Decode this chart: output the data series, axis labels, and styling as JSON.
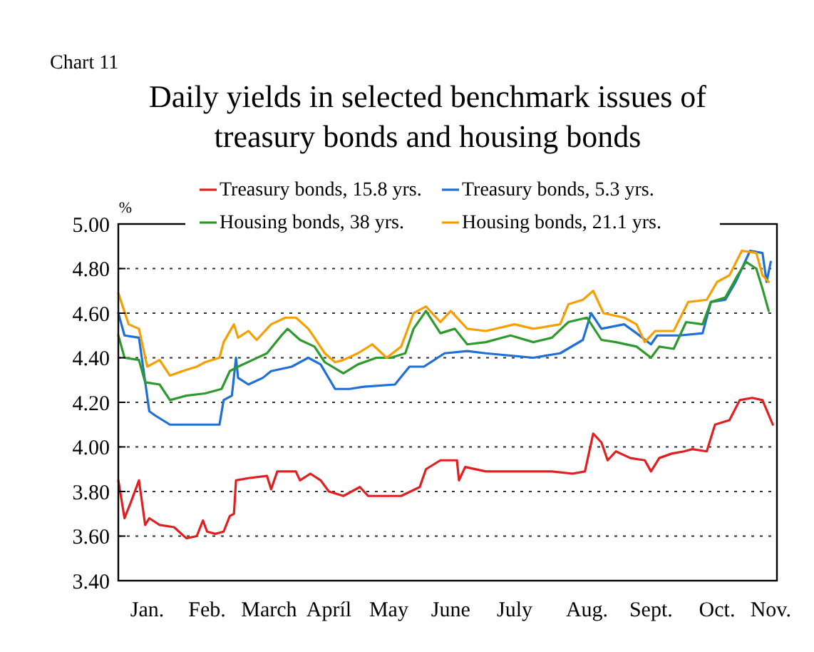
{
  "chart_data": {
    "type": "line",
    "title": "Daily yields in selected benchmark issues of\ntreasury bonds and housing bonds",
    "subtitle": "Chart 11",
    "ylabel": "%",
    "xlim": [
      "--01-01",
      "--11-16"
    ],
    "xticks": [
      {
        "value": "--01-15",
        "label": "Jan."
      },
      {
        "value": "--02-13",
        "label": "Feb."
      },
      {
        "value": "--03-15",
        "label": "March"
      },
      {
        "value": "--04-13",
        "label": "Apríl"
      },
      {
        "value": "--05-12",
        "label": "May"
      },
      {
        "value": "--06-11",
        "label": "June"
      },
      {
        "value": "--07-12",
        "label": "July"
      },
      {
        "value": "--08-16",
        "label": "Aug."
      },
      {
        "value": "--09-16",
        "label": "Sept."
      },
      {
        "value": "--10-18",
        "label": "Oct."
      },
      {
        "value": "--11-13",
        "label": "Nov."
      }
    ],
    "ylim": [
      3.4,
      5.0
    ],
    "yticks": [
      {
        "value": 3.4,
        "label": "3.40"
      },
      {
        "value": 3.6,
        "label": "3.60"
      },
      {
        "value": 3.8,
        "label": "3.80"
      },
      {
        "value": 4.0,
        "label": "4.00"
      },
      {
        "value": 4.2,
        "label": "4.20"
      },
      {
        "value": 4.4,
        "label": "4.40"
      },
      {
        "value": 4.6,
        "label": "4.60"
      },
      {
        "value": 4.8,
        "label": "4.80"
      },
      {
        "value": 5.0,
        "label": "5.00"
      }
    ],
    "grid": "y",
    "legend": "top",
    "marker": "none",
    "line_style": "solid",
    "series": [
      {
        "name": "Treasury bonds, 15.8 yrs.",
        "color": "#e02020",
        "x": [
          "--01-01",
          "--01-04",
          "--01-07",
          "--01-11",
          "--01-14",
          "--01-16",
          "--01-21",
          "--01-28",
          "--02-03",
          "--02-08",
          "--02-11",
          "--02-13",
          "--02-17",
          "--02-21",
          "--02-24",
          "--02-26",
          "--02-27",
          "--03-05",
          "--03-14",
          "--03-16",
          "--03-19",
          "--03-28",
          "--03-30",
          "--04-04",
          "--04-09",
          "--04-13",
          "--04-20",
          "--04-28",
          "--05-02",
          "--05-18",
          "--05-27",
          "--05-30",
          "--06-06",
          "--06-14",
          "--06-15",
          "--06-18",
          "--06-28",
          "--07-30",
          "--08-09",
          "--08-15",
          "--08-19",
          "--08-23",
          "--08-26",
          "--08-30",
          "--09-06",
          "--09-13",
          "--09-16",
          "--09-20",
          "--09-26",
          "--10-02",
          "--10-06",
          "--10-13",
          "--10-17",
          "--10-24",
          "--10-29",
          "--11-04",
          "--11-09",
          "--11-14"
        ],
        "values": [
          3.85,
          3.68,
          3.75,
          3.85,
          3.65,
          3.68,
          3.65,
          3.64,
          3.59,
          3.6,
          3.67,
          3.62,
          3.61,
          3.62,
          3.69,
          3.7,
          3.85,
          3.86,
          3.87,
          3.81,
          3.89,
          3.89,
          3.85,
          3.88,
          3.85,
          3.8,
          3.78,
          3.82,
          3.78,
          3.78,
          3.82,
          3.9,
          3.94,
          3.94,
          3.85,
          3.91,
          3.89,
          3.89,
          3.88,
          3.89,
          4.06,
          4.02,
          3.94,
          3.98,
          3.95,
          3.94,
          3.89,
          3.95,
          3.97,
          3.98,
          3.99,
          3.98,
          4.1,
          4.12,
          4.21,
          4.22,
          4.21,
          4.1
        ]
      },
      {
        "name": "Treasury bonds, 5.3 yrs.",
        "color": "#1f6fd6",
        "x": [
          "--01-01",
          "--01-04",
          "--01-11",
          "--01-16",
          "--01-19",
          "--01-26",
          "--02-03",
          "--02-19",
          "--02-21",
          "--02-25",
          "--02-27",
          "--02-28",
          "--03-05",
          "--03-12",
          "--03-16",
          "--03-26",
          "--04-03",
          "--04-09",
          "--04-16",
          "--04-23",
          "--04-30",
          "--05-15",
          "--05-22",
          "--05-29",
          "--06-08",
          "--06-19",
          "--06-28",
          "--07-21",
          "--08-03",
          "--08-14",
          "--08-18",
          "--08-23",
          "--09-03",
          "--09-09",
          "--09-16",
          "--09-19",
          "--09-30",
          "--10-11",
          "--10-15",
          "--10-22",
          "--10-27",
          "--11-03",
          "--11-09",
          "--11-11",
          "--11-13"
        ],
        "values": [
          4.6,
          4.5,
          4.49,
          4.16,
          4.14,
          4.1,
          4.1,
          4.1,
          4.21,
          4.23,
          4.4,
          4.31,
          4.28,
          4.31,
          4.34,
          4.36,
          4.4,
          4.37,
          4.26,
          4.26,
          4.27,
          4.28,
          4.36,
          4.36,
          4.42,
          4.43,
          4.42,
          4.4,
          4.42,
          4.48,
          4.6,
          4.53,
          4.55,
          4.51,
          4.46,
          4.5,
          4.5,
          4.51,
          4.65,
          4.66,
          4.74,
          4.88,
          4.87,
          4.74,
          4.83
        ]
      },
      {
        "name": "Housing bonds, 38 yrs.",
        "color": "#2e9a2e",
        "x": [
          "--01-01",
          "--01-04",
          "--01-11",
          "--01-14",
          "--01-21",
          "--01-26",
          "--02-03",
          "--02-12",
          "--02-20",
          "--02-24",
          "--02-28",
          "--03-07",
          "--03-14",
          "--03-21",
          "--03-24",
          "--03-30",
          "--04-06",
          "--04-11",
          "--04-20",
          "--04-27",
          "--05-06",
          "--05-13",
          "--05-20",
          "--05-24",
          "--05-30",
          "--06-06",
          "--06-13",
          "--06-19",
          "--06-28",
          "--07-10",
          "--07-21",
          "--07-30",
          "--08-07",
          "--08-16",
          "--08-23",
          "--08-30",
          "--09-09",
          "--09-16",
          "--09-20",
          "--09-27",
          "--10-03",
          "--10-11",
          "--10-15",
          "--10-22",
          "--10-28",
          "--11-01",
          "--11-06",
          "--11-09",
          "--11-12"
        ],
        "values": [
          4.5,
          4.4,
          4.39,
          4.29,
          4.28,
          4.21,
          4.23,
          4.24,
          4.26,
          4.34,
          4.36,
          4.39,
          4.42,
          4.5,
          4.53,
          4.48,
          4.45,
          4.38,
          4.33,
          4.37,
          4.4,
          4.4,
          4.42,
          4.53,
          4.61,
          4.51,
          4.53,
          4.46,
          4.47,
          4.5,
          4.47,
          4.49,
          4.56,
          4.58,
          4.48,
          4.47,
          4.45,
          4.4,
          4.45,
          4.44,
          4.56,
          4.55,
          4.65,
          4.67,
          4.77,
          4.83,
          4.8,
          4.71,
          4.61
        ]
      },
      {
        "name": "Housing bonds, 21.1 yrs.",
        "color": "#f5a000",
        "x": [
          "--01-01",
          "--01-06",
          "--01-11",
          "--01-15",
          "--01-21",
          "--01-26",
          "--02-01",
          "--02-08",
          "--02-12",
          "--02-19",
          "--02-21",
          "--02-26",
          "--02-28",
          "--03-05",
          "--03-09",
          "--03-16",
          "--03-23",
          "--03-28",
          "--04-03",
          "--04-06",
          "--04-11",
          "--04-16",
          "--04-20",
          "--04-27",
          "--05-04",
          "--05-11",
          "--05-18",
          "--05-24",
          "--05-30",
          "--06-06",
          "--06-11",
          "--06-19",
          "--06-28",
          "--07-12",
          "--07-21",
          "--08-03",
          "--08-07",
          "--08-14",
          "--08-19",
          "--08-24",
          "--09-03",
          "--09-09",
          "--09-13",
          "--09-18",
          "--09-27",
          "--10-04",
          "--10-13",
          "--10-18",
          "--10-24",
          "--10-30",
          "--11-06",
          "--11-09",
          "--11-12"
        ],
        "values": [
          4.69,
          4.55,
          4.53,
          4.36,
          4.39,
          4.32,
          4.34,
          4.36,
          4.38,
          4.4,
          4.47,
          4.55,
          4.49,
          4.52,
          4.48,
          4.55,
          4.58,
          4.58,
          4.53,
          4.49,
          4.42,
          4.38,
          4.39,
          4.42,
          4.46,
          4.4,
          4.45,
          4.6,
          4.63,
          4.56,
          4.61,
          4.53,
          4.52,
          4.55,
          4.53,
          4.55,
          4.64,
          4.66,
          4.7,
          4.6,
          4.58,
          4.55,
          4.47,
          4.52,
          4.52,
          4.65,
          4.66,
          4.74,
          4.77,
          4.88,
          4.87,
          4.77,
          4.74
        ]
      }
    ]
  }
}
